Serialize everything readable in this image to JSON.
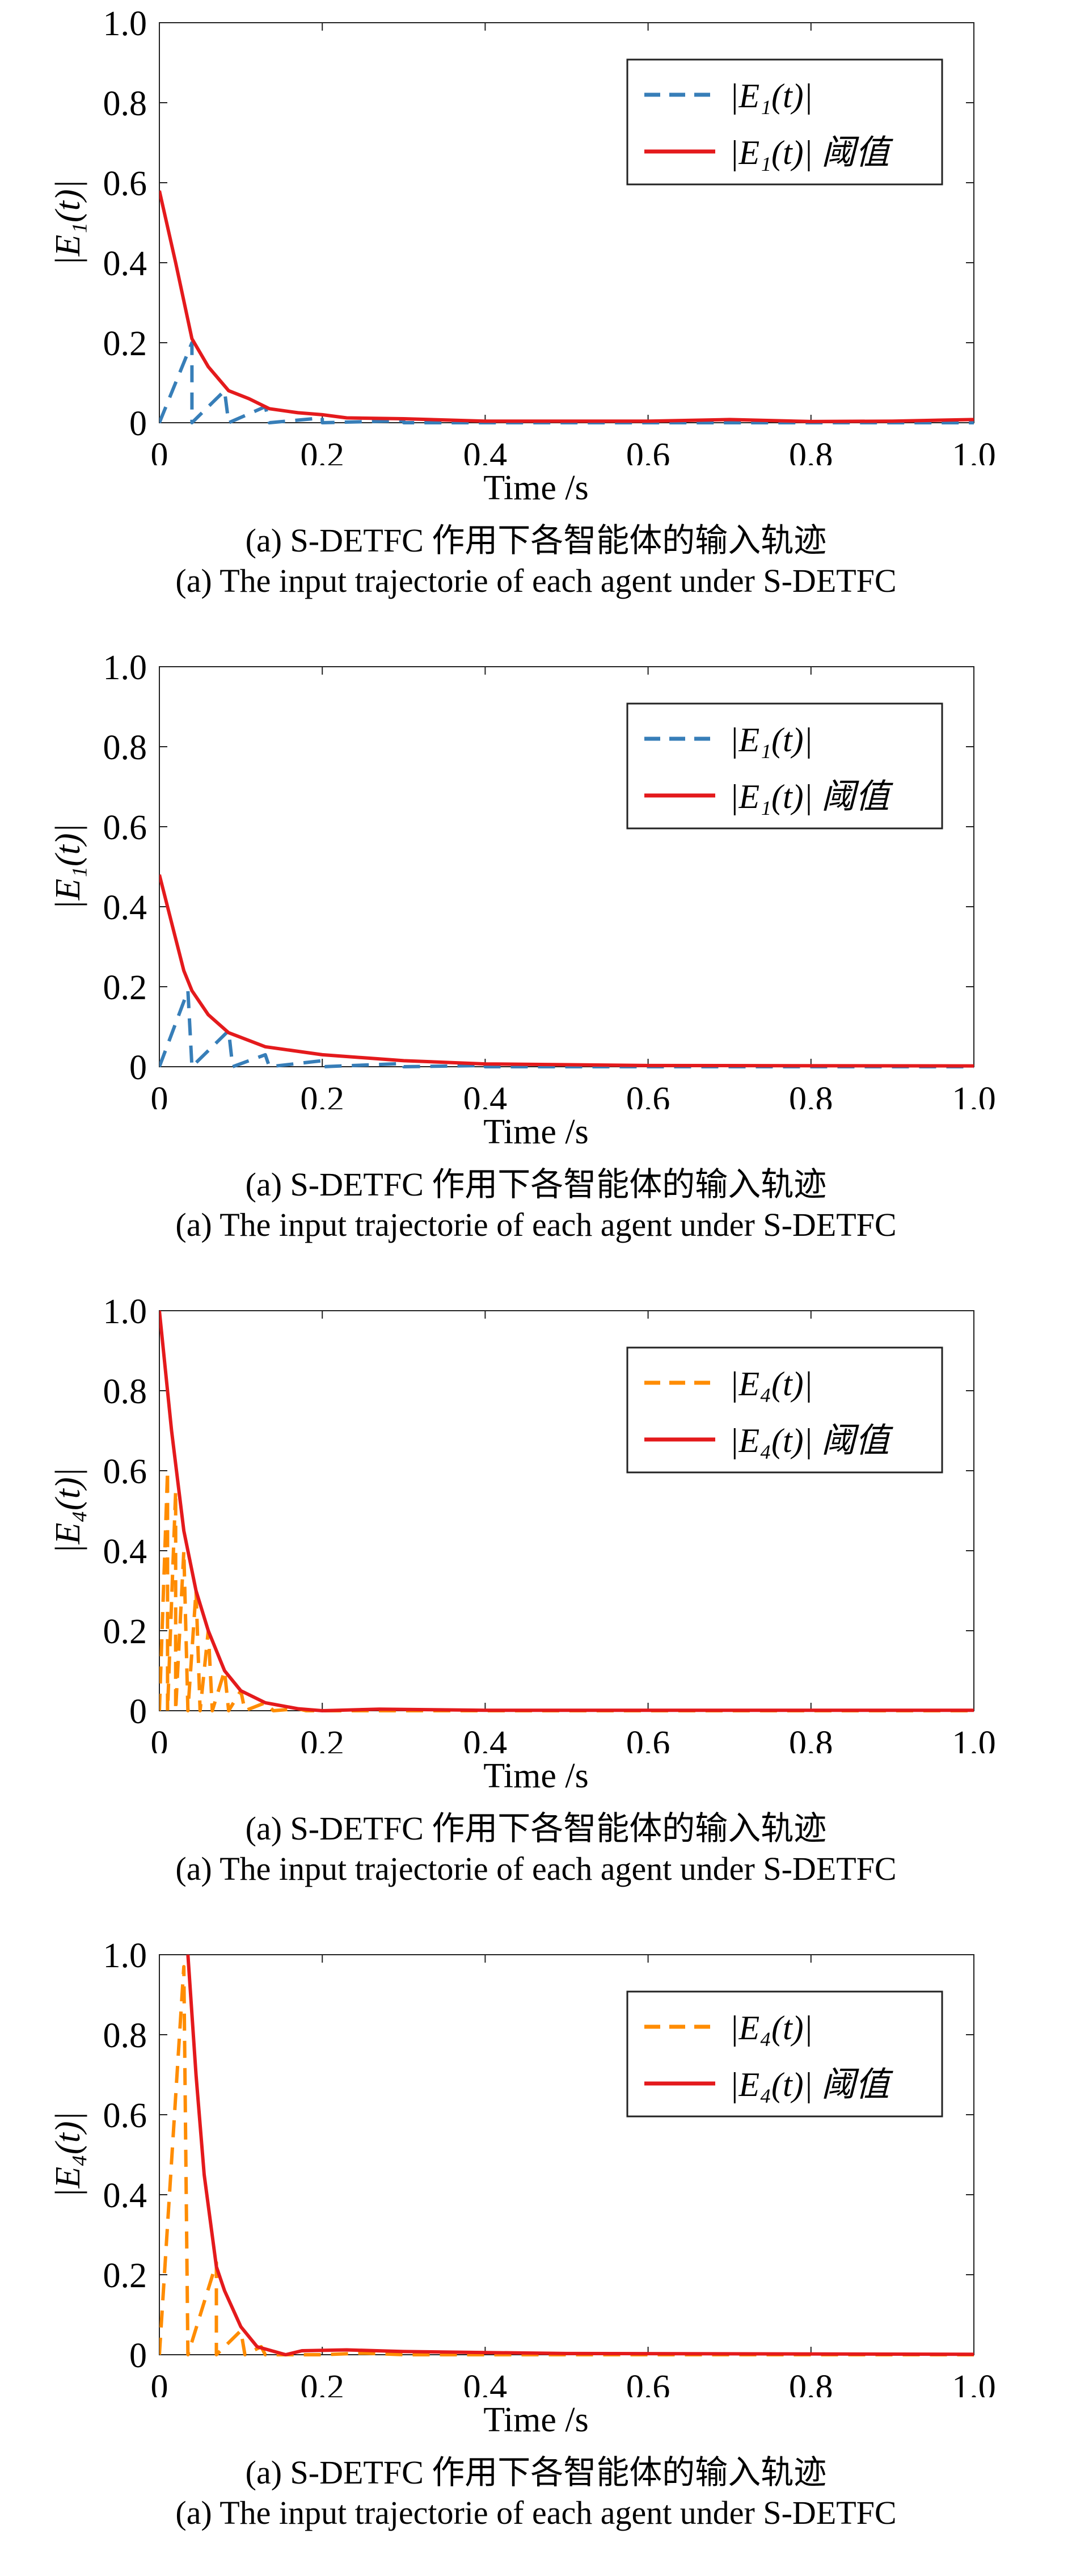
{
  "colors": {
    "blue": "#377eb8",
    "orange": "#ff8c00",
    "red": "#e41a1c"
  },
  "chart_data": [
    {
      "type": "line",
      "xlabel": "Time /s",
      "ylabel": "|E₁(t)|",
      "xlim": [
        0,
        1
      ],
      "ylim": [
        0,
        1
      ],
      "xticks": [
        "0",
        "0.2",
        "0.4",
        "0.6",
        "0.8",
        "1.0"
      ],
      "yticks": [
        "0",
        "0.2",
        "0.4",
        "0.6",
        "0.8",
        "1.0"
      ],
      "legend_position": "top-right",
      "caption_cn": "(a) S-DETFC 作用下各智能体的输入轨迹",
      "caption_en": "(a) The input trajectorie of each agent under S-DETFC",
      "series": [
        {
          "name": "|E₁(t)|",
          "style": "dashed",
          "color": "#377eb8",
          "x": [
            0,
            0.04,
            0.04,
            0.08,
            0.085,
            0.13,
            0.135,
            0.2,
            0.2,
            0.3,
            0.3,
            1.0
          ],
          "y": [
            0,
            0.2,
            0,
            0.08,
            0,
            0.04,
            0,
            0.012,
            0,
            0.005,
            0,
            0
          ]
        },
        {
          "name": "|E₁(t)| 阈值",
          "style": "solid",
          "color": "#e41a1c",
          "x": [
            0,
            0.02,
            0.04,
            0.06,
            0.085,
            0.11,
            0.135,
            0.17,
            0.2,
            0.23,
            0.3,
            0.4,
            0.5,
            0.6,
            0.7,
            0.8,
            0.9,
            1.0
          ],
          "y": [
            0.58,
            0.4,
            0.21,
            0.14,
            0.08,
            0.06,
            0.035,
            0.025,
            0.02,
            0.012,
            0.01,
            0.004,
            0.004,
            0.004,
            0.008,
            0.003,
            0.004,
            0.008
          ]
        }
      ]
    },
    {
      "type": "line",
      "xlabel": "Time /s",
      "ylabel": "|E₁(t)|",
      "xlim": [
        0,
        1
      ],
      "ylim": [
        0,
        1
      ],
      "xticks": [
        "0",
        "0.2",
        "0.4",
        "0.6",
        "0.8",
        "1.0"
      ],
      "yticks": [
        "0",
        "0.2",
        "0.4",
        "0.6",
        "0.8",
        "1.0"
      ],
      "legend_position": "top-right",
      "caption_cn": "(a) S-DETFC 作用下各智能体的输入轨迹",
      "caption_en": "(a) The input trajectorie of each agent under S-DETFC",
      "series": [
        {
          "name": "|E₁(t)|",
          "style": "dashed",
          "color": "#377eb8",
          "x": [
            0,
            0.035,
            0.04,
            0.085,
            0.09,
            0.13,
            0.135,
            0.2,
            0.2,
            0.3,
            0.3,
            0.4,
            0.4,
            1.0
          ],
          "y": [
            0,
            0.19,
            0,
            0.09,
            0,
            0.03,
            0,
            0.015,
            0,
            0.008,
            0,
            0.003,
            0,
            0
          ]
        },
        {
          "name": "|E₁(t)| 阈值",
          "style": "solid",
          "color": "#e41a1c",
          "x": [
            0,
            0.02,
            0.03,
            0.04,
            0.06,
            0.085,
            0.13,
            0.2,
            0.3,
            0.4,
            0.6,
            1.0
          ],
          "y": [
            0.48,
            0.32,
            0.24,
            0.19,
            0.13,
            0.085,
            0.05,
            0.03,
            0.015,
            0.007,
            0.003,
            0.002
          ]
        }
      ]
    },
    {
      "type": "line",
      "xlabel": "Time /s",
      "ylabel": "|E₄(t)|",
      "xlim": [
        0,
        1
      ],
      "ylim": [
        0,
        1
      ],
      "xticks": [
        "0",
        "0.2",
        "0.4",
        "0.6",
        "0.8",
        "1.0"
      ],
      "yticks": [
        "0",
        "0.2",
        "0.4",
        "0.6",
        "0.8",
        "1.0"
      ],
      "legend_position": "top-right",
      "caption_cn": "(a) S-DETFC 作用下各智能体的输入轨迹",
      "caption_en": "(a) The input trajectorie of each agent under S-DETFC",
      "series": [
        {
          "name": "|E₄(t)|",
          "style": "dashed",
          "color": "#ff8c00",
          "x": [
            0,
            0.01,
            0.01,
            0.02,
            0.02,
            0.03,
            0.035,
            0.045,
            0.05,
            0.06,
            0.065,
            0.08,
            0.085,
            0.1,
            0.105,
            0.13,
            0.14,
            0.17,
            0.18,
            1.0
          ],
          "y": [
            0,
            0.6,
            0,
            0.55,
            0,
            0.4,
            0,
            0.3,
            0,
            0.2,
            0,
            0.1,
            0,
            0.05,
            0,
            0.02,
            0,
            0.005,
            0,
            0
          ]
        },
        {
          "name": "|E₄(t)| 阈值",
          "style": "solid",
          "color": "#e41a1c",
          "x": [
            0,
            0.015,
            0.03,
            0.045,
            0.06,
            0.08,
            0.1,
            0.13,
            0.17,
            0.2,
            0.27,
            0.4,
            1.0
          ],
          "y": [
            1.0,
            0.7,
            0.45,
            0.3,
            0.2,
            0.1,
            0.05,
            0.02,
            0.005,
            0.0,
            0.004,
            0.001,
            0.001
          ]
        }
      ]
    },
    {
      "type": "line",
      "xlabel": "Time /s",
      "ylabel": "|E₄(t)|",
      "xlim": [
        0,
        1
      ],
      "ylim": [
        0,
        1
      ],
      "xticks": [
        "0",
        "0.2",
        "0.4",
        "0.6",
        "0.8",
        "1.0"
      ],
      "yticks": [
        "0",
        "0.2",
        "0.4",
        "0.6",
        "0.8",
        "1.0"
      ],
      "legend_position": "top-right",
      "caption_cn": "(a) S-DETFC 作用下各智能体的输入轨迹",
      "caption_en": "(a) The input trajectorie of each agent under S-DETFC",
      "series": [
        {
          "name": "|E₄(t)|",
          "style": "dashed",
          "color": "#ff8c00",
          "x": [
            0,
            0.03,
            0.035,
            0.07,
            0.07,
            0.1,
            0.105,
            0.125,
            0.13,
            0.2,
            0.25,
            0.3,
            1.0
          ],
          "y": [
            0,
            0.97,
            0,
            0.23,
            0,
            0.06,
            0,
            0.02,
            0,
            0.0,
            0.004,
            0,
            0
          ]
        },
        {
          "name": "|E₄(t)| 阈值",
          "style": "solid",
          "color": "#e41a1c",
          "x": [
            0.035,
            0.045,
            0.055,
            0.07,
            0.08,
            0.1,
            0.12,
            0.155,
            0.175,
            0.23,
            0.3,
            0.5,
            1.0
          ],
          "y": [
            1.0,
            0.7,
            0.45,
            0.22,
            0.16,
            0.07,
            0.02,
            0.0,
            0.01,
            0.012,
            0.008,
            0.003,
            0.001
          ]
        }
      ]
    }
  ]
}
